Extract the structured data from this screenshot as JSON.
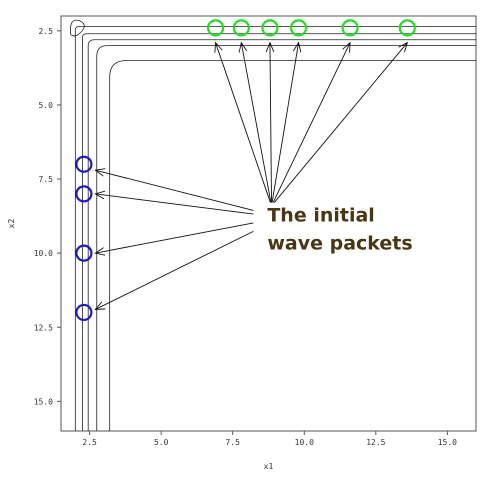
{
  "chart_data": {
    "type": "scatter",
    "title": "",
    "xlabel": "x1",
    "ylabel": "x2",
    "xlim": [
      1.5,
      16.0
    ],
    "ylim": [
      2.0,
      16.0
    ],
    "y_inverted": true,
    "xticks": [
      2.5,
      5.0,
      7.5,
      10.0,
      12.5,
      15.0
    ],
    "xtick_labels": [
      "2.5",
      "5.0",
      "7.5",
      "10.0",
      "12.5",
      "15.0"
    ],
    "yticks": [
      2.5,
      5.0,
      7.5,
      10.0,
      12.5,
      15.0
    ],
    "ytick_labels": [
      "2.5",
      "5.0",
      "7.5",
      "10.0",
      "12.5",
      "15.0"
    ],
    "grid": false,
    "legend": "none",
    "series": [
      {
        "color": "#22dd22",
        "marker": "open-circle",
        "points": [
          [
            6.9,
            2.4
          ],
          [
            7.8,
            2.4
          ],
          [
            8.8,
            2.4
          ],
          [
            9.8,
            2.4
          ],
          [
            11.6,
            2.4
          ],
          [
            13.6,
            2.4
          ]
        ]
      },
      {
        "color": "#1a1acc",
        "marker": "open-circle",
        "points": [
          [
            2.3,
            7.0
          ],
          [
            2.3,
            8.0
          ],
          [
            2.3,
            10.0
          ],
          [
            2.3,
            12.0
          ]
        ]
      }
    ],
    "contours": {
      "color": "#222222",
      "corner": [
        2.0,
        2.2
      ],
      "levels": [
        {
          "x": 3.2,
          "y": 3.5
        },
        {
          "x": 2.75,
          "y": 3.0
        },
        {
          "x": 2.45,
          "y": 2.8
        },
        {
          "x": 2.25,
          "y": 2.6
        },
        {
          "x": 2.0,
          "y": 2.35
        }
      ]
    },
    "annotation": {
      "lines": [
        "The initial",
        "wave packets"
      ],
      "anchor": [
        8.5,
        8.8
      ],
      "arrow_tip_points": [
        [
          6.9,
          2.9
        ],
        [
          7.8,
          2.9
        ],
        [
          8.8,
          2.9
        ],
        [
          9.8,
          2.9
        ],
        [
          11.6,
          2.9
        ],
        [
          13.6,
          2.9
        ],
        [
          2.7,
          7.2
        ],
        [
          2.7,
          8.0
        ],
        [
          2.7,
          10.0
        ],
        [
          2.7,
          11.9
        ]
      ],
      "color": "#4a3712"
    }
  }
}
